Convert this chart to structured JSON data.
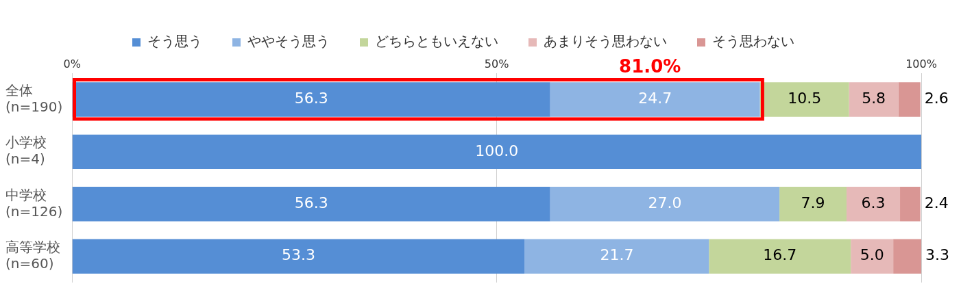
{
  "chart_data": {
    "type": "bar",
    "orientation": "horizontal",
    "stacked": true,
    "categories": [
      "全体\n(n=190)",
      "小学校\n(n=4)",
      "中学校\n(n=126)",
      "高等学校\n(n=60)"
    ],
    "series": [
      {
        "name": "そう思う",
        "color": "#558ed5",
        "values": [
          56.3,
          100.0,
          56.3,
          53.3
        ],
        "value_labels": [
          "56.3",
          "100.0",
          "56.3",
          "53.3"
        ]
      },
      {
        "name": "ややそう思う",
        "color": "#8eb4e3",
        "values": [
          24.7,
          null,
          27.0,
          21.7
        ],
        "value_labels": [
          "24.7",
          null,
          "27.0",
          "21.7"
        ]
      },
      {
        "name": "どちらともいえない",
        "color": "#c3d69b",
        "values": [
          10.5,
          null,
          7.9,
          16.7
        ],
        "value_labels": [
          "10.5",
          null,
          "7.9",
          "16.7"
        ]
      },
      {
        "name": "あまりそう思わない",
        "color": "#e6b9b8",
        "values": [
          5.8,
          null,
          6.3,
          5.0
        ],
        "value_labels": [
          "5.8",
          null,
          "6.3",
          "5.0"
        ]
      },
      {
        "name": "そう思わない",
        "color": "#d99694",
        "values": [
          2.6,
          null,
          2.4,
          3.3
        ],
        "value_labels": [
          "2.6",
          null,
          "2.4",
          "3.3"
        ]
      }
    ],
    "xlim": [
      0,
      100
    ],
    "xticks": [
      {
        "value": 0,
        "label": "0%"
      },
      {
        "value": 50,
        "label": "50%"
      },
      {
        "value": 100,
        "label": "100%"
      }
    ],
    "grid": "x",
    "legend": "top",
    "annotations": [
      "81.0%"
    ]
  }
}
